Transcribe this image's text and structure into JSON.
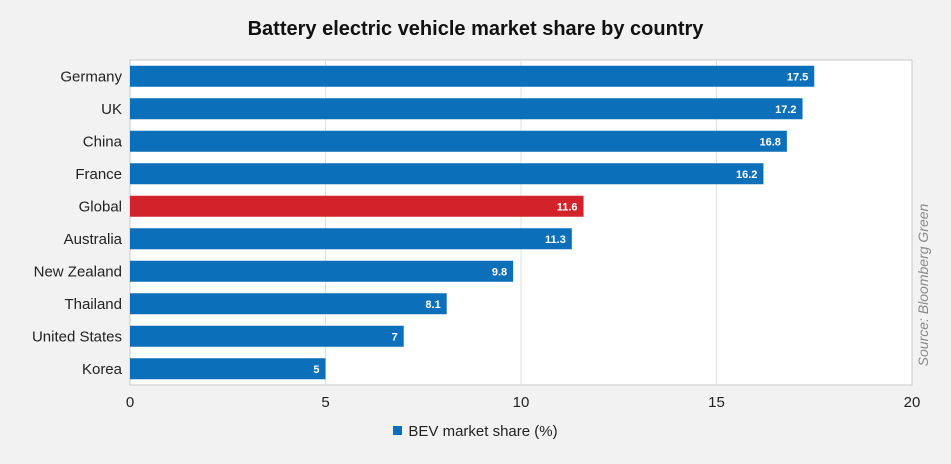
{
  "chart_data": {
    "type": "bar",
    "orientation": "horizontal",
    "title": "Battery electric vehicle market share by country",
    "categories": [
      "Germany",
      "UK",
      "China",
      "France",
      "Global",
      "Australia",
      "New Zealand",
      "Thailand",
      "United States",
      "Korea"
    ],
    "series": [
      {
        "name": "BEV market share (%)",
        "values": [
          17.5,
          17.2,
          16.8,
          16.2,
          11.6,
          11.3,
          9.8,
          8.1,
          7,
          5
        ],
        "color": "#0b6fba",
        "highlight": {
          "category": "Global",
          "color": "#d2232a"
        }
      }
    ],
    "xlim": [
      0,
      20
    ],
    "xticks": [
      0,
      5,
      10,
      15,
      20
    ],
    "xlabel": "",
    "ylabel": "",
    "grid": "vertical",
    "legend": "bottom-center",
    "source": "Source: Bloomberg Green"
  }
}
